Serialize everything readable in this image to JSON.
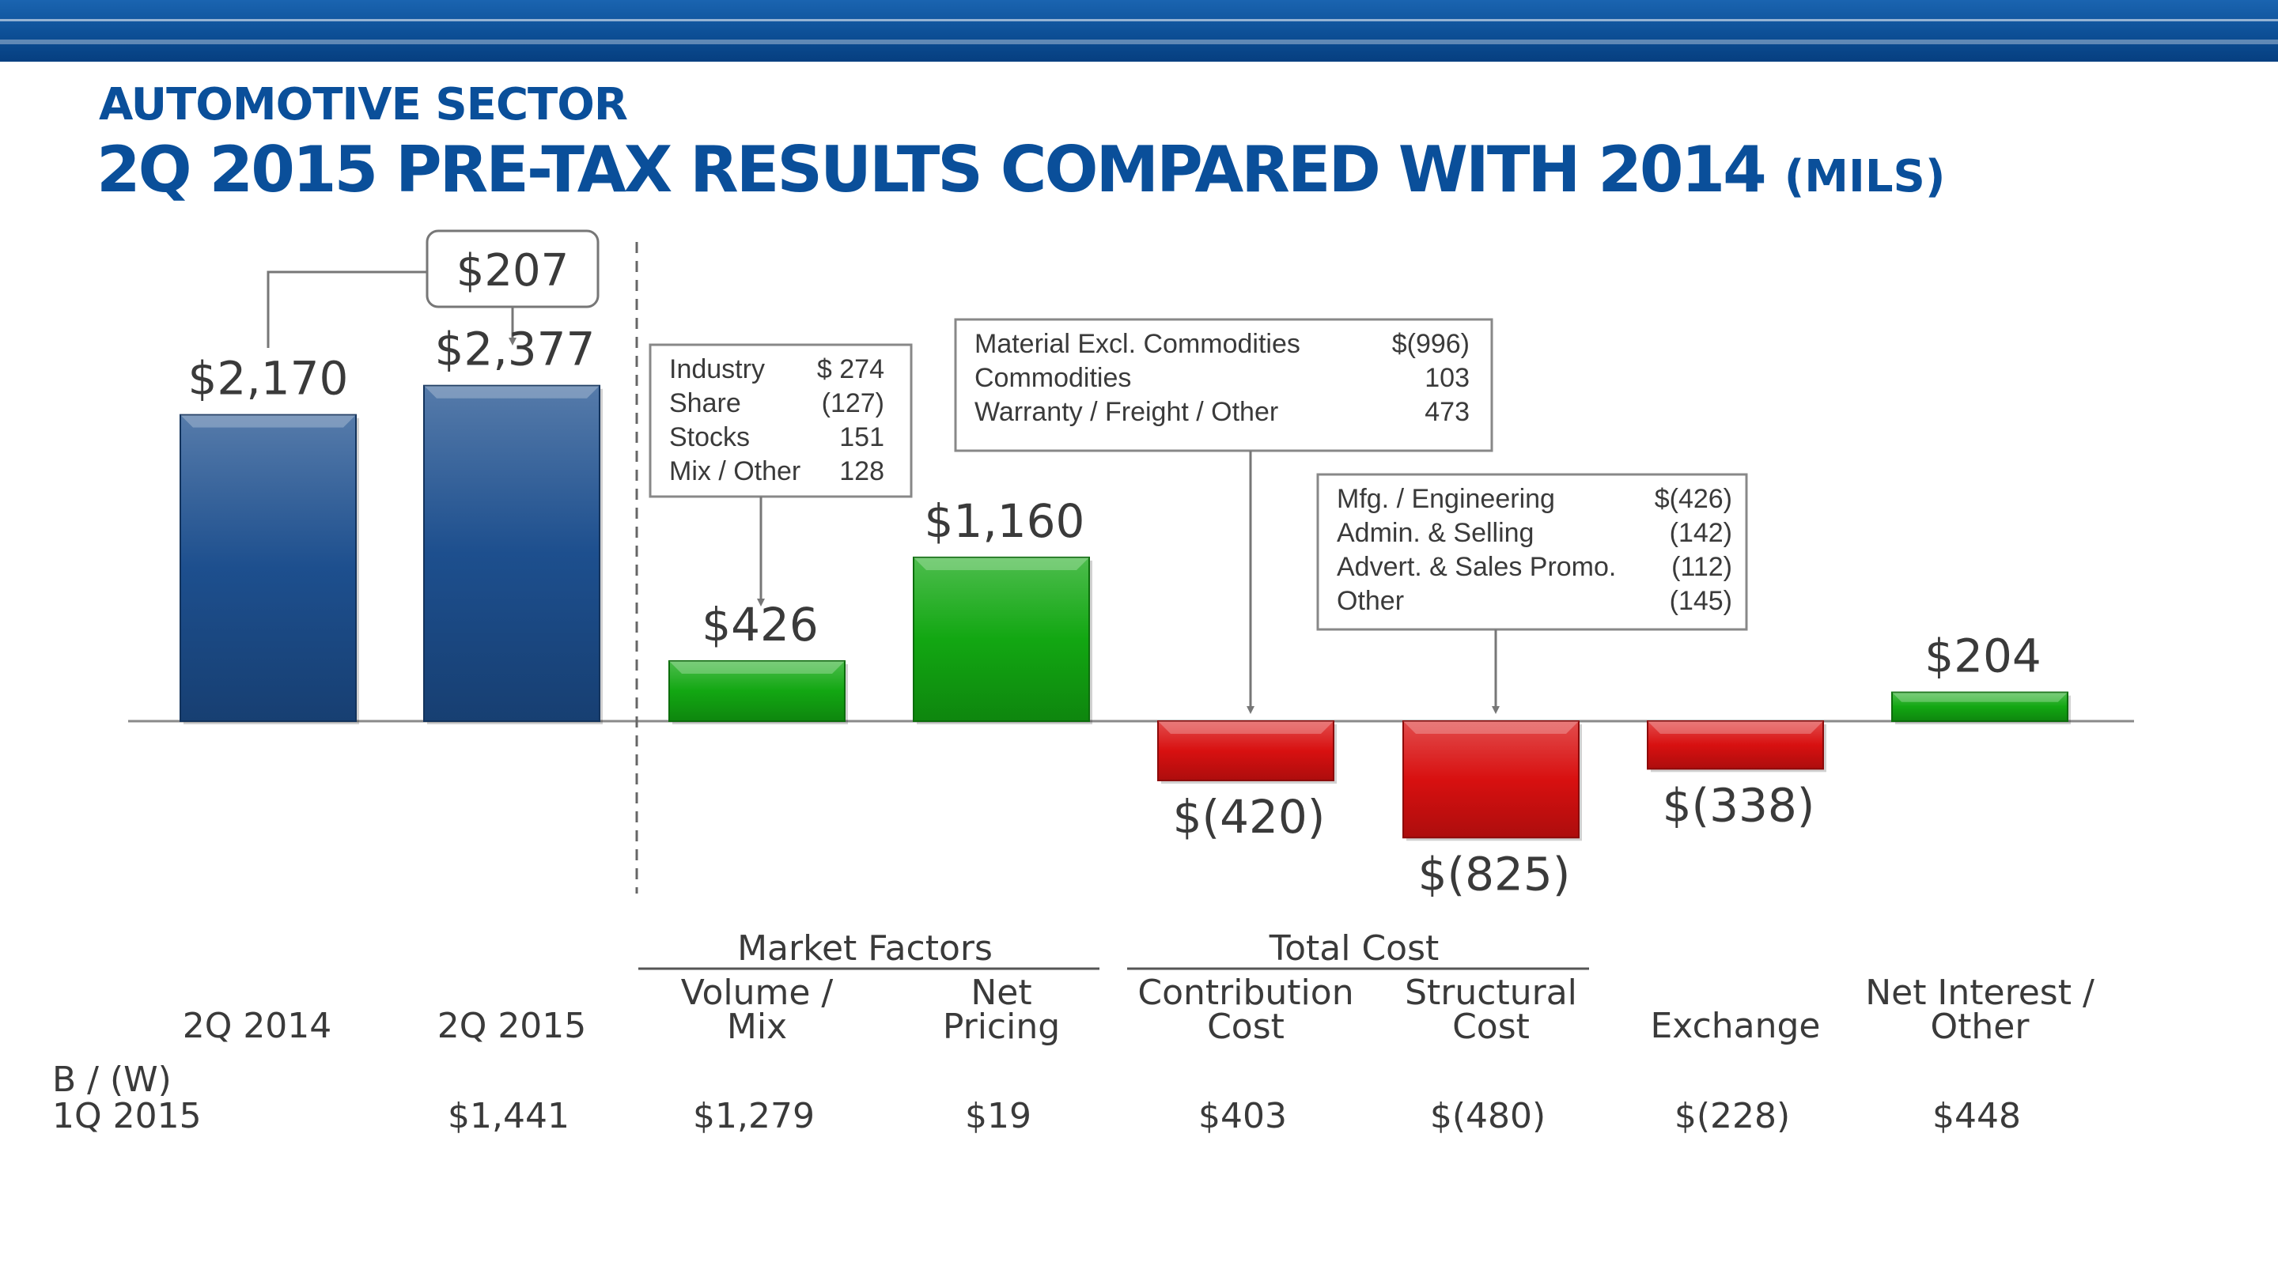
{
  "header": {
    "sector": "AUTOMOTIVE SECTOR",
    "title": "2Q 2015 PRE-TAX RESULTS COMPARED WITH 2014",
    "title_unit": "(MILS)"
  },
  "colors": {
    "blue": "#1d4f8e",
    "green": "#12a712",
    "red": "#d81010",
    "title": "#0a4f9a"
  },
  "chart_data": {
    "type": "bar",
    "subtype": "waterfall",
    "unit": "$ millions",
    "categories": [
      "2Q 2014",
      "2Q 2015",
      "Volume / Mix",
      "Net Pricing",
      "Contribution Cost",
      "Structural Cost",
      "Exchange",
      "Net Interest / Other"
    ],
    "category_lines": [
      [
        "2Q 2014"
      ],
      [
        "2Q 2015"
      ],
      [
        "Volume /",
        "Mix"
      ],
      [
        "Net",
        "Pricing"
      ],
      [
        "Contribution",
        "Cost"
      ],
      [
        "Structural",
        "Cost"
      ],
      [
        "Exchange"
      ],
      [
        "Net Interest /",
        "Other"
      ]
    ],
    "values": [
      2170,
      2377,
      426,
      1160,
      -420,
      -825,
      -338,
      204
    ],
    "value_labels": [
      "$2,170",
      "$2,377",
      "$426",
      "$1,160",
      "$(420)",
      "$(825)",
      "$(338)",
      "$204"
    ],
    "bar_colors": [
      "blue",
      "blue",
      "green",
      "green",
      "red",
      "red",
      "red",
      "green"
    ],
    "change": {
      "value": 207,
      "label": "$207"
    },
    "groups": [
      {
        "label": "Market Factors",
        "categories": [
          "Volume / Mix",
          "Net Pricing"
        ]
      },
      {
        "label": "Total Cost",
        "categories": [
          "Contribution Cost",
          "Structural Cost"
        ]
      }
    ],
    "breakdowns": [
      {
        "category": "Volume / Mix",
        "items": [
          {
            "label": "Industry",
            "value": "$ 274"
          },
          {
            "label": "Share",
            "value": "(127)"
          },
          {
            "label": "Stocks",
            "value": "151"
          },
          {
            "label": "Mix / Other",
            "value": "128"
          }
        ]
      },
      {
        "category": "Contribution Cost",
        "items": [
          {
            "label": "Material Excl. Commodities",
            "value": "$(996)"
          },
          {
            "label": "Commodities",
            "value": "103"
          },
          {
            "label": "Warranty / Freight / Other",
            "value": "473"
          }
        ]
      },
      {
        "category": "Structural Cost",
        "items": [
          {
            "label": "Mfg. / Engineering",
            "value": "$(426)"
          },
          {
            "label": "Admin. & Selling",
            "value": "(142)"
          },
          {
            "label": "Advert. & Sales Promo.",
            "value": "(112)"
          },
          {
            "label": "Other",
            "value": "(145)"
          }
        ]
      }
    ],
    "comparison_row": {
      "label_lines": [
        "B / (W)",
        "1Q 2015"
      ],
      "values": [
        "",
        "$1,441",
        "$1,279",
        "$19",
        "$403",
        "$(480)",
        "$(228)",
        "$448"
      ]
    }
  }
}
